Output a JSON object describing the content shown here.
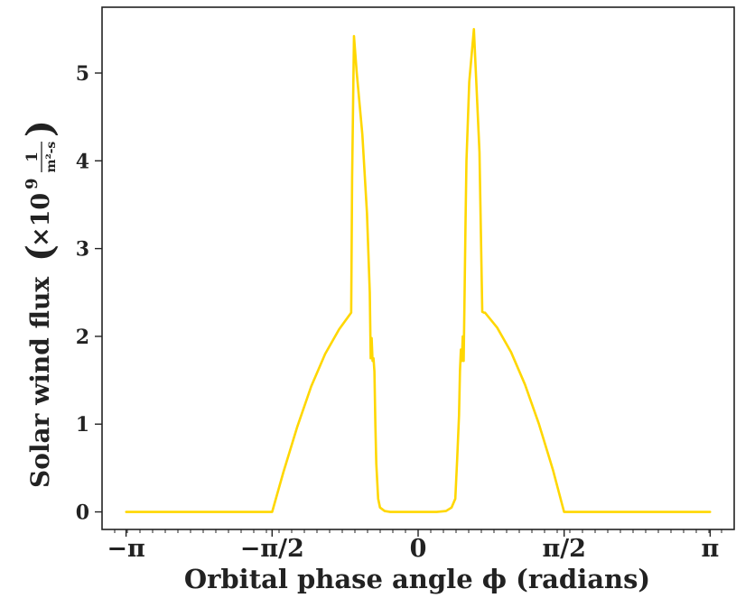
{
  "chart_data": {
    "type": "line",
    "xlabel": "Orbital phase angle ϕ (radians)",
    "ylabel": "Solar wind flux",
    "ylabel_unit": "(×10⁹ 1/(m²-s))",
    "ylabel_unit_parts": {
      "open_paren": "(",
      "times": "×10",
      "exponent": "9",
      "numerator": "1",
      "denominator": "m²-s",
      "close_paren": ")"
    },
    "xlim": [
      -3.4,
      3.4
    ],
    "ylim": [
      -0.2,
      5.75
    ],
    "x_ticks": [
      {
        "value": -3.1416,
        "label": "−π"
      },
      {
        "value": -1.5708,
        "label": "−π/2"
      },
      {
        "value": 0,
        "label": "0"
      },
      {
        "value": 1.5708,
        "label": "π/2"
      },
      {
        "value": 3.1416,
        "label": "π"
      }
    ],
    "y_ticks": [
      {
        "value": 0,
        "label": "0"
      },
      {
        "value": 1,
        "label": "1"
      },
      {
        "value": 2,
        "label": "2"
      },
      {
        "value": 3,
        "label": "3"
      },
      {
        "value": 4,
        "label": "4"
      },
      {
        "value": 5,
        "label": "5"
      }
    ],
    "grid": false,
    "series": [
      {
        "color": "#FFD700",
        "x": [
          -3.14,
          -1.57,
          -1.45,
          -1.3,
          -1.15,
          -1.0,
          -0.85,
          -0.72,
          -0.71,
          -0.69,
          -0.66,
          -0.6,
          -0.55,
          -0.52,
          -0.51,
          -0.5,
          -0.49,
          -0.48,
          -0.47,
          -0.46,
          -0.45,
          -0.43,
          -0.41,
          -0.36,
          -0.3,
          -0.2,
          -0.1,
          0,
          0.1,
          0.2,
          0.3,
          0.36,
          0.4,
          0.42,
          0.44,
          0.45,
          0.46,
          0.47,
          0.48,
          0.49,
          0.5,
          0.51,
          0.52,
          0.55,
          0.6,
          0.66,
          0.69,
          0.71,
          0.72,
          0.85,
          1.0,
          1.15,
          1.3,
          1.45,
          1.57,
          3.14
        ],
        "y": [
          0,
          0,
          0.45,
          0.97,
          1.43,
          1.8,
          2.08,
          2.27,
          3.8,
          5.42,
          5.0,
          4.3,
          3.4,
          2.5,
          1.75,
          1.98,
          1.72,
          1.75,
          1.6,
          1.0,
          0.55,
          0.15,
          0.05,
          0.01,
          0.0,
          0.0,
          0.0,
          0.0,
          0.0,
          0.0,
          0.01,
          0.05,
          0.15,
          0.6,
          1.1,
          1.6,
          1.85,
          1.72,
          2.0,
          1.72,
          2.5,
          3.3,
          4.0,
          4.9,
          5.5,
          4.1,
          2.28,
          2.27,
          2.27,
          2.1,
          1.82,
          1.45,
          1.0,
          0.48,
          0.0,
          0
        ]
      }
    ]
  }
}
